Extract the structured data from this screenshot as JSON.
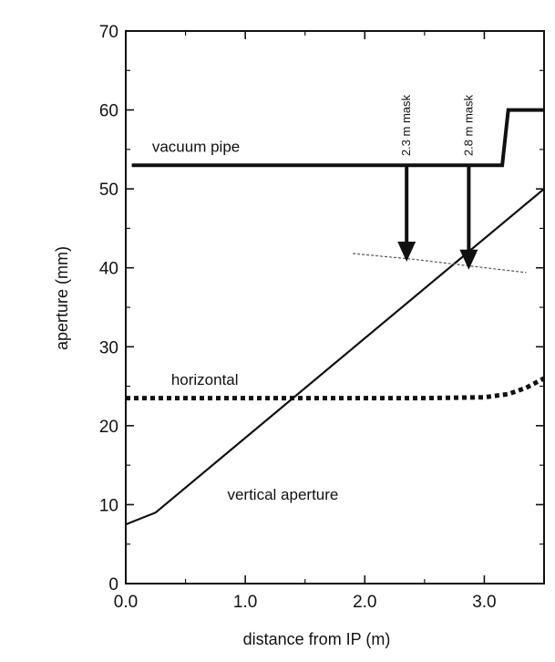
{
  "chart_data": {
    "type": "line",
    "xlabel": "distance from IP (m)",
    "ylabel": "aperture (mm)",
    "xlim": [
      0.0,
      3.5
    ],
    "ylim": [
      0,
      70
    ],
    "x_ticks": [
      "0.0",
      "1.0",
      "2.0",
      "3.0"
    ],
    "y_ticks": [
      "0",
      "10",
      "20",
      "30",
      "40",
      "50",
      "60",
      "70"
    ],
    "grid": false,
    "series": [
      {
        "name": "vacuum pipe",
        "style": "thick-solid",
        "color": "#111111",
        "x": [
          0.05,
          3.15,
          3.2,
          3.5
        ],
        "y": [
          53,
          53,
          60,
          60
        ]
      },
      {
        "name": "vertical aperture",
        "style": "solid",
        "color": "#111111",
        "x": [
          0.0,
          0.25,
          3.5
        ],
        "y": [
          7.5,
          9.0,
          50.0
        ]
      },
      {
        "name": "horizontal",
        "style": "dotted",
        "color": "#111111",
        "x": [
          0.0,
          2.5,
          3.0,
          3.2,
          3.35,
          3.5
        ],
        "y": [
          23.5,
          23.5,
          23.6,
          24.0,
          24.8,
          26.0
        ]
      },
      {
        "name": "",
        "style": "thin-dashed",
        "color": "#555555",
        "x": [
          1.9,
          2.4,
          2.9,
          3.35
        ],
        "y": [
          41.8,
          41.1,
          40.2,
          39.4
        ]
      }
    ],
    "annotations": [
      {
        "text": "2.3 m mask",
        "x": 2.35,
        "y_from": 53,
        "y_to": 41,
        "type": "arrow"
      },
      {
        "text": "2.8 m mask",
        "x": 2.87,
        "y_from": 53,
        "y_to": 40,
        "type": "arrow"
      }
    ],
    "series_labels": [
      {
        "text": "vacuum pipe",
        "x": 0.22,
        "y": 54.7
      },
      {
        "text": "horizontal",
        "x": 0.38,
        "y": 25.2
      },
      {
        "text": "vertical aperture",
        "x": 0.85,
        "y": 10.6
      }
    ]
  }
}
